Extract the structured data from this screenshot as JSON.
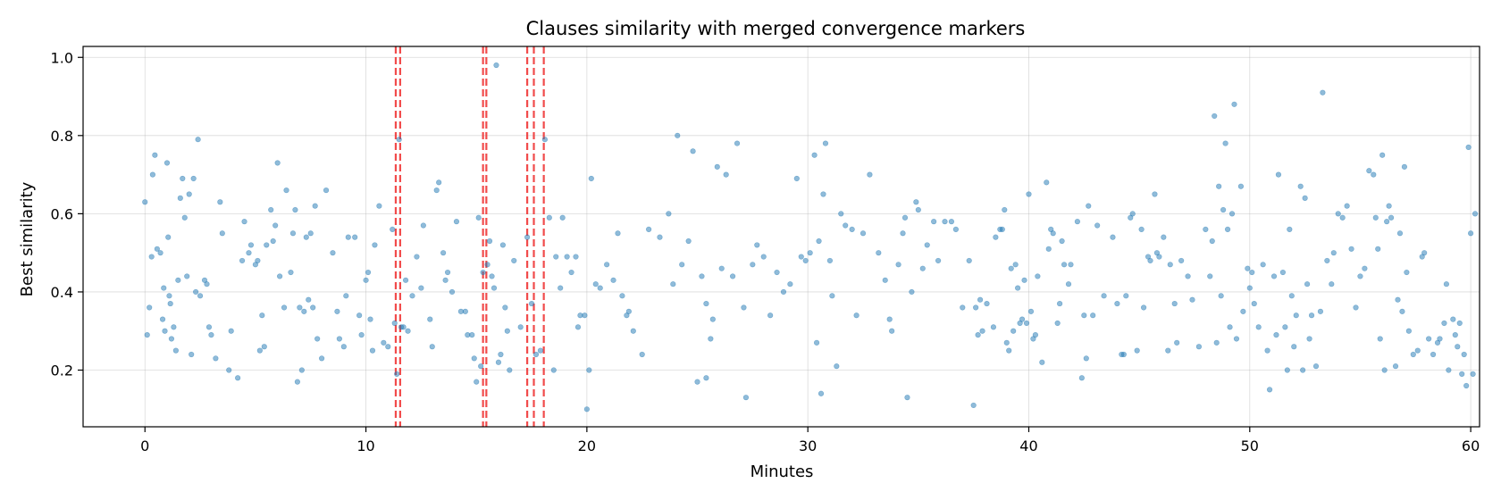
{
  "chart_data": {
    "type": "scatter",
    "title": "Clauses similarity with merged convergence markers",
    "xlabel": "Minutes",
    "ylabel": "Best similarity",
    "xlim": [
      -2.8,
      60.4
    ],
    "ylim": [
      0.055,
      1.028
    ],
    "xticks": [
      0,
      10,
      20,
      30,
      40,
      50,
      60
    ],
    "yticks": [
      0.2,
      0.4,
      0.6,
      0.8,
      1.0
    ],
    "grid": true,
    "point_color": "#1f77b4",
    "marker_color": "#ef2b2b",
    "convergence_markers": [
      11.35,
      11.55,
      15.3,
      15.45,
      17.3,
      17.6,
      18.05
    ],
    "points": [
      [
        0.0,
        0.63
      ],
      [
        0.1,
        0.29
      ],
      [
        0.2,
        0.36
      ],
      [
        0.3,
        0.49
      ],
      [
        0.35,
        0.7
      ],
      [
        0.45,
        0.75
      ],
      [
        0.55,
        0.51
      ],
      [
        0.7,
        0.5
      ],
      [
        0.8,
        0.33
      ],
      [
        0.85,
        0.41
      ],
      [
        0.9,
        0.3
      ],
      [
        1.0,
        0.73
      ],
      [
        1.05,
        0.54
      ],
      [
        1.1,
        0.39
      ],
      [
        1.15,
        0.37
      ],
      [
        1.2,
        0.28
      ],
      [
        1.3,
        0.31
      ],
      [
        1.4,
        0.25
      ],
      [
        1.5,
        0.43
      ],
      [
        1.6,
        0.64
      ],
      [
        1.7,
        0.69
      ],
      [
        1.8,
        0.59
      ],
      [
        1.9,
        0.44
      ],
      [
        2.0,
        0.65
      ],
      [
        2.1,
        0.24
      ],
      [
        2.2,
        0.69
      ],
      [
        2.3,
        0.4
      ],
      [
        2.4,
        0.79
      ],
      [
        2.5,
        0.39
      ],
      [
        2.7,
        0.43
      ],
      [
        2.8,
        0.42
      ],
      [
        2.9,
        0.31
      ],
      [
        3.0,
        0.29
      ],
      [
        3.2,
        0.23
      ],
      [
        3.4,
        0.63
      ],
      [
        3.5,
        0.55
      ],
      [
        3.8,
        0.2
      ],
      [
        3.9,
        0.3
      ],
      [
        4.2,
        0.18
      ],
      [
        4.4,
        0.48
      ],
      [
        4.5,
        0.58
      ],
      [
        4.7,
        0.5
      ],
      [
        4.8,
        0.52
      ],
      [
        5.0,
        0.47
      ],
      [
        5.1,
        0.48
      ],
      [
        5.2,
        0.25
      ],
      [
        5.3,
        0.34
      ],
      [
        5.4,
        0.26
      ],
      [
        5.5,
        0.52
      ],
      [
        5.7,
        0.61
      ],
      [
        5.8,
        0.53
      ],
      [
        5.9,
        0.57
      ],
      [
        6.0,
        0.73
      ],
      [
        6.1,
        0.44
      ],
      [
        6.3,
        0.36
      ],
      [
        6.4,
        0.66
      ],
      [
        6.6,
        0.45
      ],
      [
        6.7,
        0.55
      ],
      [
        6.8,
        0.61
      ],
      [
        6.9,
        0.17
      ],
      [
        7.0,
        0.36
      ],
      [
        7.1,
        0.2
      ],
      [
        7.2,
        0.35
      ],
      [
        7.3,
        0.54
      ],
      [
        7.4,
        0.38
      ],
      [
        7.5,
        0.55
      ],
      [
        7.6,
        0.36
      ],
      [
        7.7,
        0.62
      ],
      [
        7.8,
        0.28
      ],
      [
        8.0,
        0.23
      ],
      [
        8.2,
        0.66
      ],
      [
        8.5,
        0.5
      ],
      [
        8.7,
        0.35
      ],
      [
        8.8,
        0.28
      ],
      [
        9.0,
        0.26
      ],
      [
        9.1,
        0.39
      ],
      [
        9.2,
        0.54
      ],
      [
        9.5,
        0.54
      ],
      [
        9.7,
        0.34
      ],
      [
        9.8,
        0.29
      ],
      [
        10.0,
        0.43
      ],
      [
        10.1,
        0.45
      ],
      [
        10.2,
        0.33
      ],
      [
        10.3,
        0.25
      ],
      [
        10.4,
        0.52
      ],
      [
        10.6,
        0.62
      ],
      [
        10.8,
        0.27
      ],
      [
        11.0,
        0.26
      ],
      [
        11.2,
        0.56
      ],
      [
        11.3,
        0.32
      ],
      [
        11.4,
        0.19
      ],
      [
        11.5,
        0.79
      ],
      [
        11.6,
        0.31
      ],
      [
        11.7,
        0.31
      ],
      [
        11.8,
        0.43
      ],
      [
        11.9,
        0.3
      ],
      [
        12.1,
        0.39
      ],
      [
        12.3,
        0.49
      ],
      [
        12.5,
        0.41
      ],
      [
        12.6,
        0.57
      ],
      [
        12.9,
        0.33
      ],
      [
        13.0,
        0.26
      ],
      [
        13.2,
        0.66
      ],
      [
        13.3,
        0.68
      ],
      [
        13.5,
        0.5
      ],
      [
        13.6,
        0.43
      ],
      [
        13.7,
        0.45
      ],
      [
        13.9,
        0.4
      ],
      [
        14.1,
        0.58
      ],
      [
        14.3,
        0.35
      ],
      [
        14.5,
        0.35
      ],
      [
        14.6,
        0.29
      ],
      [
        14.8,
        0.29
      ],
      [
        14.9,
        0.23
      ],
      [
        15.0,
        0.17
      ],
      [
        15.1,
        0.59
      ],
      [
        15.2,
        0.21
      ],
      [
        15.3,
        0.45
      ],
      [
        15.5,
        0.47
      ],
      [
        15.6,
        0.53
      ],
      [
        15.7,
        0.44
      ],
      [
        15.8,
        0.41
      ],
      [
        15.9,
        0.98
      ],
      [
        16.0,
        0.22
      ],
      [
        16.1,
        0.24
      ],
      [
        16.2,
        0.52
      ],
      [
        16.3,
        0.36
      ],
      [
        16.4,
        0.3
      ],
      [
        16.5,
        0.2
      ],
      [
        16.7,
        0.48
      ],
      [
        17.0,
        0.31
      ],
      [
        17.3,
        0.54
      ],
      [
        17.5,
        0.37
      ],
      [
        17.7,
        0.24
      ],
      [
        17.9,
        0.25
      ],
      [
        18.1,
        0.79
      ],
      [
        18.3,
        0.59
      ],
      [
        18.5,
        0.2
      ],
      [
        18.6,
        0.49
      ],
      [
        18.8,
        0.41
      ],
      [
        18.9,
        0.59
      ],
      [
        19.1,
        0.49
      ],
      [
        19.3,
        0.45
      ],
      [
        19.5,
        0.49
      ],
      [
        19.6,
        0.31
      ],
      [
        19.7,
        0.34
      ],
      [
        19.9,
        0.34
      ],
      [
        20.0,
        0.1
      ],
      [
        20.1,
        0.2
      ],
      [
        20.2,
        0.69
      ],
      [
        20.4,
        0.42
      ],
      [
        20.6,
        0.41
      ],
      [
        20.9,
        0.47
      ],
      [
        21.2,
        0.43
      ],
      [
        21.4,
        0.55
      ],
      [
        21.6,
        0.39
      ],
      [
        21.8,
        0.34
      ],
      [
        21.9,
        0.35
      ],
      [
        22.1,
        0.3
      ],
      [
        22.5,
        0.24
      ],
      [
        22.8,
        0.56
      ],
      [
        23.3,
        0.54
      ],
      [
        23.7,
        0.6
      ],
      [
        23.9,
        0.42
      ],
      [
        24.1,
        0.8
      ],
      [
        24.3,
        0.47
      ],
      [
        24.6,
        0.53
      ],
      [
        24.8,
        0.76
      ],
      [
        25.0,
        0.17
      ],
      [
        25.2,
        0.44
      ],
      [
        25.4,
        0.18
      ],
      [
        25.4,
        0.37
      ],
      [
        25.6,
        0.28
      ],
      [
        25.7,
        0.33
      ],
      [
        25.9,
        0.72
      ],
      [
        26.1,
        0.46
      ],
      [
        26.3,
        0.7
      ],
      [
        26.6,
        0.44
      ],
      [
        26.8,
        0.78
      ],
      [
        27.1,
        0.36
      ],
      [
        27.2,
        0.13
      ],
      [
        27.5,
        0.47
      ],
      [
        27.7,
        0.52
      ],
      [
        28.0,
        0.49
      ],
      [
        28.3,
        0.34
      ],
      [
        28.6,
        0.45
      ],
      [
        28.9,
        0.4
      ],
      [
        29.2,
        0.42
      ],
      [
        29.5,
        0.69
      ],
      [
        29.7,
        0.49
      ],
      [
        29.9,
        0.48
      ],
      [
        30.1,
        0.5
      ],
      [
        30.3,
        0.75
      ],
      [
        30.4,
        0.27
      ],
      [
        30.5,
        0.53
      ],
      [
        30.6,
        0.14
      ],
      [
        30.7,
        0.65
      ],
      [
        30.8,
        0.78
      ],
      [
        31.0,
        0.48
      ],
      [
        31.1,
        0.39
      ],
      [
        31.3,
        0.21
      ],
      [
        31.5,
        0.6
      ],
      [
        31.7,
        0.57
      ],
      [
        32.0,
        0.56
      ],
      [
        32.2,
        0.34
      ],
      [
        32.5,
        0.55
      ],
      [
        32.8,
        0.7
      ],
      [
        33.2,
        0.5
      ],
      [
        33.5,
        0.43
      ],
      [
        33.7,
        0.33
      ],
      [
        33.8,
        0.3
      ],
      [
        34.1,
        0.47
      ],
      [
        34.3,
        0.55
      ],
      [
        34.4,
        0.59
      ],
      [
        34.5,
        0.13
      ],
      [
        34.7,
        0.4
      ],
      [
        34.9,
        0.63
      ],
      [
        35.0,
        0.61
      ],
      [
        35.2,
        0.46
      ],
      [
        35.4,
        0.52
      ],
      [
        35.7,
        0.58
      ],
      [
        35.9,
        0.48
      ],
      [
        36.2,
        0.58
      ],
      [
        36.5,
        0.58
      ],
      [
        36.7,
        0.56
      ],
      [
        37.0,
        0.36
      ],
      [
        37.3,
        0.48
      ],
      [
        37.5,
        0.11
      ],
      [
        37.6,
        0.36
      ],
      [
        37.7,
        0.29
      ],
      [
        37.8,
        0.38
      ],
      [
        37.9,
        0.3
      ],
      [
        38.1,
        0.37
      ],
      [
        38.4,
        0.31
      ],
      [
        38.5,
        0.54
      ],
      [
        38.7,
        0.56
      ],
      [
        38.8,
        0.56
      ],
      [
        38.9,
        0.61
      ],
      [
        39.0,
        0.27
      ],
      [
        39.1,
        0.25
      ],
      [
        39.2,
        0.46
      ],
      [
        39.3,
        0.3
      ],
      [
        39.4,
        0.47
      ],
      [
        39.5,
        0.41
      ],
      [
        39.6,
        0.32
      ],
      [
        39.7,
        0.33
      ],
      [
        39.8,
        0.43
      ],
      [
        39.9,
        0.32
      ],
      [
        40.0,
        0.65
      ],
      [
        40.1,
        0.35
      ],
      [
        40.2,
        0.28
      ],
      [
        40.3,
        0.29
      ],
      [
        40.4,
        0.44
      ],
      [
        40.6,
        0.22
      ],
      [
        40.8,
        0.68
      ],
      [
        40.9,
        0.51
      ],
      [
        41.0,
        0.56
      ],
      [
        41.1,
        0.55
      ],
      [
        41.3,
        0.32
      ],
      [
        41.4,
        0.37
      ],
      [
        41.5,
        0.53
      ],
      [
        41.6,
        0.47
      ],
      [
        41.8,
        0.42
      ],
      [
        41.9,
        0.47
      ],
      [
        42.2,
        0.58
      ],
      [
        42.4,
        0.18
      ],
      [
        42.5,
        0.34
      ],
      [
        42.6,
        0.23
      ],
      [
        42.7,
        0.62
      ],
      [
        42.9,
        0.34
      ],
      [
        43.1,
        0.57
      ],
      [
        43.4,
        0.39
      ],
      [
        43.8,
        0.54
      ],
      [
        44.0,
        0.37
      ],
      [
        44.2,
        0.24
      ],
      [
        44.3,
        0.24
      ],
      [
        44.4,
        0.39
      ],
      [
        44.6,
        0.59
      ],
      [
        44.7,
        0.6
      ],
      [
        44.9,
        0.25
      ],
      [
        45.1,
        0.56
      ],
      [
        45.2,
        0.36
      ],
      [
        45.4,
        0.49
      ],
      [
        45.5,
        0.48
      ],
      [
        45.7,
        0.65
      ],
      [
        45.8,
        0.5
      ],
      [
        45.9,
        0.49
      ],
      [
        46.1,
        0.54
      ],
      [
        46.3,
        0.25
      ],
      [
        46.4,
        0.47
      ],
      [
        46.6,
        0.37
      ],
      [
        46.7,
        0.27
      ],
      [
        46.9,
        0.48
      ],
      [
        47.2,
        0.44
      ],
      [
        47.4,
        0.38
      ],
      [
        47.7,
        0.26
      ],
      [
        48.0,
        0.56
      ],
      [
        48.2,
        0.44
      ],
      [
        48.3,
        0.53
      ],
      [
        48.4,
        0.85
      ],
      [
        48.5,
        0.27
      ],
      [
        48.6,
        0.67
      ],
      [
        48.7,
        0.39
      ],
      [
        48.8,
        0.61
      ],
      [
        48.9,
        0.78
      ],
      [
        49.0,
        0.56
      ],
      [
        49.1,
        0.31
      ],
      [
        49.2,
        0.6
      ],
      [
        49.3,
        0.88
      ],
      [
        49.4,
        0.28
      ],
      [
        49.6,
        0.67
      ],
      [
        49.7,
        0.35
      ],
      [
        49.9,
        0.46
      ],
      [
        50.0,
        0.41
      ],
      [
        50.1,
        0.45
      ],
      [
        50.2,
        0.37
      ],
      [
        50.4,
        0.31
      ],
      [
        50.6,
        0.47
      ],
      [
        50.8,
        0.25
      ],
      [
        50.9,
        0.15
      ],
      [
        51.1,
        0.44
      ],
      [
        51.2,
        0.29
      ],
      [
        51.3,
        0.7
      ],
      [
        51.5,
        0.45
      ],
      [
        51.6,
        0.31
      ],
      [
        51.7,
        0.2
      ],
      [
        51.8,
        0.56
      ],
      [
        51.9,
        0.39
      ],
      [
        52.0,
        0.26
      ],
      [
        52.1,
        0.34
      ],
      [
        52.3,
        0.67
      ],
      [
        52.4,
        0.2
      ],
      [
        52.5,
        0.64
      ],
      [
        52.6,
        0.42
      ],
      [
        52.7,
        0.28
      ],
      [
        52.8,
        0.34
      ],
      [
        53.0,
        0.21
      ],
      [
        53.2,
        0.35
      ],
      [
        53.3,
        0.91
      ],
      [
        53.5,
        0.48
      ],
      [
        53.7,
        0.42
      ],
      [
        53.8,
        0.5
      ],
      [
        54.0,
        0.6
      ],
      [
        54.2,
        0.59
      ],
      [
        54.4,
        0.62
      ],
      [
        54.6,
        0.51
      ],
      [
        54.8,
        0.36
      ],
      [
        55.0,
        0.44
      ],
      [
        55.2,
        0.46
      ],
      [
        55.4,
        0.71
      ],
      [
        55.6,
        0.7
      ],
      [
        55.7,
        0.59
      ],
      [
        55.8,
        0.51
      ],
      [
        55.9,
        0.28
      ],
      [
        56.0,
        0.75
      ],
      [
        56.1,
        0.2
      ],
      [
        56.2,
        0.58
      ],
      [
        56.3,
        0.62
      ],
      [
        56.4,
        0.59
      ],
      [
        56.6,
        0.21
      ],
      [
        56.7,
        0.38
      ],
      [
        56.8,
        0.55
      ],
      [
        56.9,
        0.35
      ],
      [
        57.0,
        0.72
      ],
      [
        57.1,
        0.45
      ],
      [
        57.2,
        0.3
      ],
      [
        57.4,
        0.24
      ],
      [
        57.6,
        0.25
      ],
      [
        57.8,
        0.49
      ],
      [
        57.9,
        0.5
      ],
      [
        58.1,
        0.28
      ],
      [
        58.3,
        0.24
      ],
      [
        58.5,
        0.27
      ],
      [
        58.6,
        0.28
      ],
      [
        58.8,
        0.32
      ],
      [
        58.9,
        0.42
      ],
      [
        59.0,
        0.2
      ],
      [
        59.2,
        0.33
      ],
      [
        59.3,
        0.29
      ],
      [
        59.4,
        0.26
      ],
      [
        59.5,
        0.32
      ],
      [
        59.6,
        0.19
      ],
      [
        59.7,
        0.24
      ],
      [
        59.8,
        0.16
      ],
      [
        59.9,
        0.77
      ],
      [
        60.0,
        0.55
      ],
      [
        60.1,
        0.19
      ],
      [
        60.2,
        0.6
      ]
    ]
  }
}
